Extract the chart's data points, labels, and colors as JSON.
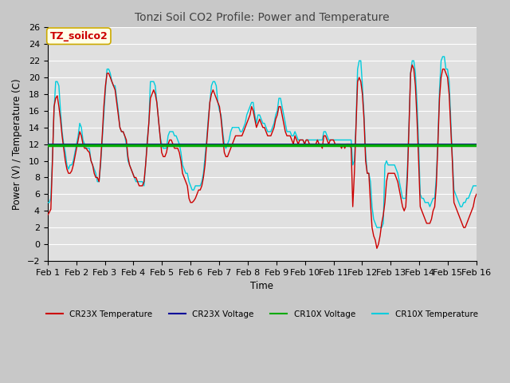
{
  "title": "Tonzi Soil CO2 Profile: Power and Temperature",
  "ylabel": "Power (V) / Temperature (C)",
  "xlabel": "Time",
  "ylim": [
    -2,
    26
  ],
  "yticks": [
    -2,
    0,
    2,
    4,
    6,
    8,
    10,
    12,
    14,
    16,
    18,
    20,
    22,
    24,
    26
  ],
  "xlim": [
    0,
    15
  ],
  "xtick_labels": [
    "Feb 1",
    "Feb 2",
    "Feb 3",
    "Feb 4",
    "Feb 5",
    "Feb 6",
    "Feb 7",
    "Feb 8",
    "Feb 9",
    "Feb 10",
    "Feb 11",
    "Feb 12",
    "Feb 13",
    "Feb 14",
    "Feb 15",
    "Feb 16"
  ],
  "annotation_label": "TZ_soilco2",
  "annotation_color": "#cc0000",
  "annotation_bg": "#ffffe8",
  "annotation_border": "#ccaa00",
  "cr10x_voltage_value": 11.85,
  "cr23x_voltage_value": 11.95,
  "fig_facecolor": "#c8c8c8",
  "plot_facecolor": "#e0e0e0",
  "grid_color": "#ffffff",
  "cr23x_temp_color": "#cc0000",
  "cr23x_volt_color": "#000099",
  "cr10x_volt_color": "#00aa00",
  "cr10x_temp_color": "#00ccdd",
  "legend_labels": [
    "CR23X Temperature",
    "CR23X Voltage",
    "CR10X Voltage",
    "CR10X Temperature"
  ],
  "cr23x_temp": [
    3.5,
    3.8,
    4.2,
    10.0,
    16.5,
    17.5,
    17.8,
    16.5,
    15.0,
    13.0,
    11.5,
    10.0,
    9.0,
    8.5,
    8.5,
    8.8,
    9.5,
    10.5,
    11.5,
    12.5,
    13.5,
    13.0,
    12.0,
    11.5,
    11.5,
    11.2,
    11.0,
    10.0,
    9.5,
    8.5,
    8.0,
    8.0,
    7.5,
    10.0,
    13.0,
    16.5,
    19.0,
    20.5,
    20.5,
    20.0,
    19.5,
    19.0,
    18.5,
    17.0,
    15.5,
    14.0,
    13.5,
    13.5,
    13.0,
    12.5,
    10.5,
    9.5,
    9.0,
    8.5,
    8.0,
    8.0,
    7.5,
    7.0,
    7.0,
    7.0,
    7.5,
    9.5,
    12.0,
    14.5,
    17.5,
    18.0,
    18.5,
    18.0,
    17.0,
    15.0,
    13.0,
    11.0,
    10.5,
    10.5,
    11.0,
    12.0,
    12.5,
    12.5,
    12.0,
    11.5,
    11.5,
    11.5,
    11.0,
    10.0,
    8.5,
    8.0,
    7.5,
    7.0,
    5.5,
    5.0,
    5.0,
    5.2,
    5.5,
    6.0,
    6.5,
    6.5,
    7.0,
    8.0,
    9.5,
    12.0,
    14.5,
    17.0,
    18.0,
    18.5,
    18.0,
    17.5,
    17.0,
    16.5,
    15.0,
    13.0,
    11.0,
    10.5,
    10.5,
    11.0,
    11.5,
    12.0,
    12.5,
    13.0,
    13.0,
    13.0,
    13.0,
    13.0,
    13.5,
    14.0,
    14.5,
    15.0,
    15.5,
    16.5,
    16.0,
    15.0,
    14.0,
    14.5,
    15.0,
    14.5,
    14.0,
    14.0,
    13.5,
    13.0,
    13.0,
    13.0,
    13.5,
    14.0,
    15.0,
    15.5,
    16.5,
    16.5,
    15.5,
    14.5,
    13.5,
    13.0,
    13.0,
    13.0,
    12.5,
    12.0,
    13.0,
    12.5,
    12.0,
    12.5,
    12.5,
    12.5,
    12.0,
    12.5,
    12.5,
    12.0,
    12.0,
    12.0,
    12.0,
    12.0,
    12.5,
    12.0,
    12.0,
    11.5,
    13.0,
    13.0,
    12.5,
    12.0,
    12.5,
    12.5,
    12.5,
    12.0,
    12.0,
    12.0,
    12.0,
    11.5,
    12.0,
    11.5,
    12.0,
    12.0,
    12.0,
    11.5,
    4.5,
    8.5,
    14.0,
    19.5,
    20.0,
    19.5,
    18.0,
    15.0,
    10.0,
    8.5,
    8.5,
    5.0,
    2.0,
    1.0,
    0.5,
    -0.5,
    0.0,
    1.0,
    2.5,
    3.5,
    5.0,
    7.5,
    8.5,
    8.5,
    8.5,
    8.5,
    8.5,
    8.0,
    7.5,
    6.5,
    5.5,
    4.5,
    4.0,
    4.5,
    8.0,
    14.0,
    20.5,
    21.5,
    21.0,
    19.0,
    15.0,
    10.0,
    4.5,
    4.0,
    3.5,
    3.0,
    2.5,
    2.5,
    2.5,
    3.0,
    4.0,
    4.5,
    7.0,
    12.0,
    17.5,
    20.0,
    21.0,
    21.0,
    20.5,
    20.0,
    18.0,
    14.0,
    10.0,
    5.0,
    4.5,
    4.0,
    3.5,
    3.0,
    2.5,
    2.0,
    2.0,
    2.5,
    3.0,
    3.5,
    4.0,
    4.5,
    5.5,
    6.0
  ],
  "cr10x_temp": [
    5.0,
    5.0,
    5.5,
    10.5,
    16.0,
    19.5,
    19.5,
    19.0,
    16.0,
    13.5,
    12.0,
    11.0,
    9.5,
    9.0,
    9.5,
    9.5,
    10.0,
    11.0,
    12.0,
    13.0,
    14.5,
    14.0,
    12.5,
    12.0,
    11.5,
    11.5,
    11.5,
    10.0,
    9.5,
    9.0,
    8.5,
    7.5,
    7.5,
    9.5,
    12.5,
    15.5,
    18.5,
    21.0,
    21.0,
    20.5,
    19.5,
    19.0,
    19.0,
    17.5,
    16.0,
    14.0,
    13.5,
    13.5,
    13.0,
    12.0,
    10.0,
    9.5,
    9.0,
    8.5,
    8.0,
    7.5,
    7.5,
    7.5,
    7.5,
    7.5,
    7.0,
    9.5,
    12.5,
    14.5,
    19.5,
    19.5,
    19.5,
    19.0,
    17.0,
    15.0,
    13.0,
    12.0,
    11.5,
    11.5,
    11.5,
    13.0,
    13.5,
    13.5,
    13.5,
    13.0,
    13.0,
    12.5,
    12.0,
    11.0,
    9.5,
    9.0,
    8.5,
    8.5,
    7.5,
    7.0,
    6.5,
    6.5,
    7.0,
    7.0,
    7.0,
    7.0,
    7.5,
    8.5,
    10.5,
    12.5,
    15.0,
    17.0,
    19.0,
    19.5,
    19.5,
    19.0,
    17.0,
    16.0,
    15.5,
    13.5,
    12.0,
    11.5,
    12.0,
    12.5,
    13.5,
    14.0,
    14.0,
    14.0,
    14.0,
    14.0,
    13.5,
    13.5,
    14.0,
    14.5,
    15.5,
    16.0,
    16.5,
    17.0,
    17.0,
    15.5,
    14.5,
    15.5,
    15.5,
    15.0,
    14.5,
    14.5,
    14.0,
    13.5,
    13.5,
    13.5,
    14.0,
    14.5,
    15.5,
    16.0,
    17.5,
    17.5,
    16.5,
    15.5,
    14.5,
    13.5,
    13.5,
    13.5,
    13.0,
    13.0,
    13.5,
    13.0,
    12.5,
    12.5,
    12.5,
    12.5,
    12.0,
    12.5,
    12.5,
    12.5,
    12.5,
    12.5,
    12.5,
    12.5,
    12.5,
    12.5,
    12.5,
    12.5,
    13.5,
    13.5,
    13.0,
    12.5,
    12.5,
    12.5,
    12.5,
    12.5,
    12.5,
    12.5,
    12.5,
    12.5,
    12.5,
    12.5,
    12.5,
    12.5,
    12.5,
    12.5,
    9.5,
    10.0,
    14.5,
    21.0,
    22.0,
    22.0,
    19.0,
    15.5,
    11.0,
    8.5,
    8.5,
    7.5,
    4.5,
    3.0,
    2.5,
    2.0,
    2.0,
    2.0,
    2.0,
    2.5,
    9.5,
    10.0,
    9.5,
    9.5,
    9.5,
    9.5,
    9.5,
    9.0,
    8.5,
    7.5,
    6.5,
    5.5,
    5.5,
    5.5,
    9.0,
    14.5,
    20.5,
    22.0,
    22.0,
    20.5,
    17.0,
    12.0,
    6.0,
    5.5,
    5.5,
    5.0,
    5.0,
    5.0,
    4.5,
    5.0,
    5.5,
    5.5,
    8.0,
    12.5,
    18.5,
    22.0,
    22.5,
    22.5,
    21.0,
    21.0,
    19.5,
    15.0,
    10.5,
    6.5,
    6.0,
    5.5,
    5.0,
    4.5,
    4.5,
    5.0,
    5.0,
    5.5,
    5.5,
    6.0,
    6.5,
    7.0,
    7.0,
    7.0
  ]
}
